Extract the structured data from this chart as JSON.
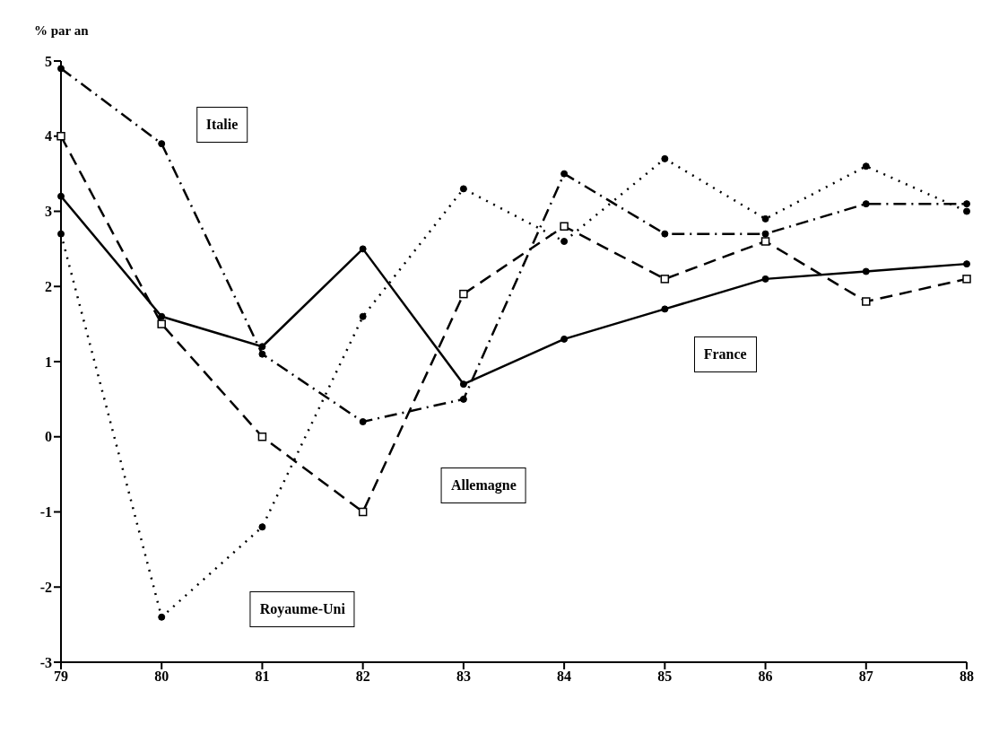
{
  "chart_data": {
    "type": "line",
    "ylabel": "% par an",
    "categories": [
      "79",
      "80",
      "81",
      "82",
      "83",
      "84",
      "85",
      "86",
      "87",
      "88"
    ],
    "series": [
      {
        "name": "France",
        "color": "#000000",
        "line_style": "solid",
        "marker": "circle",
        "values": [
          3.2,
          1.6,
          1.2,
          2.5,
          0.7,
          1.3,
          1.7,
          2.1,
          2.2,
          2.3
        ]
      },
      {
        "name": "Allemagne",
        "color": "#000000",
        "line_style": "dashed",
        "marker": "square",
        "values": [
          4.0,
          1.5,
          0.0,
          -1.0,
          1.9,
          2.8,
          2.1,
          2.6,
          1.8,
          2.1
        ]
      },
      {
        "name": "Italie",
        "color": "#000000",
        "line_style": "dashdot",
        "marker": "circle",
        "values": [
          4.9,
          3.9,
          1.1,
          0.2,
          0.5,
          3.5,
          2.7,
          2.7,
          3.1,
          3.1
        ]
      },
      {
        "name": "Royaume-Uni",
        "color": "#000000",
        "line_style": "dotted",
        "marker": "circle",
        "values": [
          2.7,
          -2.4,
          -1.2,
          1.6,
          3.3,
          2.6,
          3.7,
          2.9,
          3.6,
          3.0
        ]
      }
    ],
    "ylim": [
      -3,
      5
    ],
    "yticks": [
      -3,
      -2,
      -1,
      0,
      1,
      2,
      3,
      4,
      5
    ],
    "grid": false
  }
}
